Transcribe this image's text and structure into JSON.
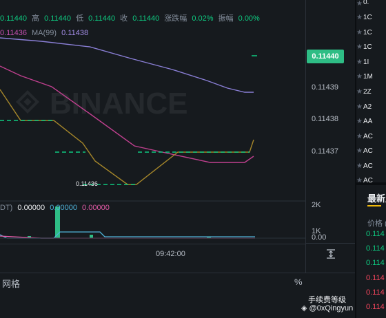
{
  "info": {
    "open_value": "0.11440",
    "high_label": "高",
    "high_value": "0.11440",
    "low_label": "低",
    "low_value": "0.11440",
    "close_label": "收",
    "close_value": "0.11440",
    "change_label": "涨跌幅",
    "change_value": "0.02%",
    "amplitude_label": "振幅",
    "amplitude_value": "0.00%"
  },
  "ma": {
    "ma_short_value": "0.11436",
    "ma_long_label": "MA(99)",
    "ma_long_value": "0.11438"
  },
  "price_axis": {
    "ticks": [
      "0.11439",
      "0.11438",
      "0.11437"
    ],
    "last_price": "0.11440",
    "low_marker": "0.11436"
  },
  "volume": {
    "label_partial": "DT)",
    "v1": "0.00000",
    "v2": "0.00000",
    "v3": "0.00000",
    "ticks": [
      "2K",
      "1K",
      "0.00"
    ]
  },
  "time_axis": {
    "label": "09:42:00"
  },
  "bottom": {
    "grid_tab": "网格",
    "pct_icon": "%",
    "fee_level": "手续费等级"
  },
  "right_panel": {
    "pairs": [
      "0.",
      "1C",
      "1C",
      "1C",
      "1I",
      "1M",
      "2Z",
      "A2",
      "AA",
      "AC",
      "AC",
      "AC",
      "AC"
    ],
    "section_title": "最新成",
    "col_header": "价格 (",
    "trades": [
      {
        "price": "0.114",
        "side": "buy"
      },
      {
        "price": "0.114",
        "side": "buy"
      },
      {
        "price": "0.114",
        "side": "buy"
      },
      {
        "price": "0.114",
        "side": "sell"
      },
      {
        "price": "0.114",
        "side": "sell"
      },
      {
        "price": "0.114",
        "side": "sell"
      }
    ]
  },
  "credit": "@0xQingyun",
  "watermark": "BINANCE",
  "colors": {
    "bg": "#161a1e",
    "green": "#0ecb81",
    "red": "#f6465d",
    "ma_short": "#c54fb0",
    "ma_long": "#a48ee8",
    "ma_mid": "#b08c2a",
    "accent": "#f0b90b"
  }
}
